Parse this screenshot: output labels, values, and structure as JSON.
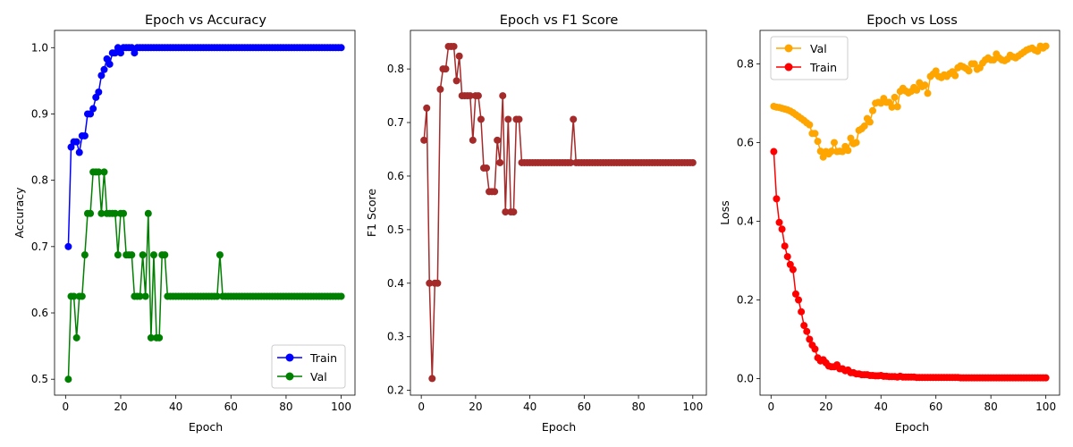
{
  "chart_data": [
    {
      "type": "line",
      "title": "Epoch vs Accuracy",
      "xlabel": "Epoch",
      "ylabel": "Accuracy",
      "xlim": [
        -4,
        105
      ],
      "ylim": [
        0.476,
        1.026
      ],
      "xticks": [
        0,
        20,
        40,
        60,
        80,
        100
      ],
      "yticks": [
        0.5,
        0.6,
        0.7,
        0.8,
        0.9,
        1.0
      ],
      "ytick_labels": [
        "0.5",
        "0.6",
        "0.7",
        "0.8",
        "0.9",
        "1.0"
      ],
      "legend": "lower-right",
      "series": [
        {
          "name": "Train",
          "color": "#0000ff",
          "values": [
            0.7,
            0.85,
            0.858,
            0.858,
            0.842,
            0.867,
            0.867,
            0.9,
            0.9,
            0.908,
            0.925,
            0.933,
            0.958,
            0.967,
            0.983,
            0.975,
            0.992,
            0.992,
            1.0,
            0.992,
            1.0,
            1.0,
            1.0,
            1.0,
            0.992,
            1.0,
            1.0,
            1.0,
            1.0,
            1.0,
            1.0,
            1.0,
            1.0,
            1.0,
            1.0,
            1.0,
            1.0,
            1.0,
            1.0,
            1.0,
            1.0,
            1.0,
            1.0,
            1.0,
            1.0,
            1.0,
            1.0,
            1.0,
            1.0,
            1.0,
            1.0,
            1.0,
            1.0,
            1.0,
            1.0,
            1.0,
            1.0,
            1.0,
            1.0,
            1.0,
            1.0,
            1.0,
            1.0,
            1.0,
            1.0,
            1.0,
            1.0,
            1.0,
            1.0,
            1.0,
            1.0,
            1.0,
            1.0,
            1.0,
            1.0,
            1.0,
            1.0,
            1.0,
            1.0,
            1.0,
            1.0,
            1.0,
            1.0,
            1.0,
            1.0,
            1.0,
            1.0,
            1.0,
            1.0,
            1.0,
            1.0,
            1.0,
            1.0,
            1.0,
            1.0,
            1.0,
            1.0,
            1.0,
            1.0,
            1.0
          ]
        },
        {
          "name": "Val",
          "color": "#008000",
          "values": [
            0.5,
            0.625,
            0.625,
            0.5625,
            0.625,
            0.625,
            0.6875,
            0.75,
            0.75,
            0.8125,
            0.8125,
            0.8125,
            0.75,
            0.8125,
            0.75,
            0.75,
            0.75,
            0.75,
            0.6875,
            0.75,
            0.75,
            0.6875,
            0.6875,
            0.6875,
            0.625,
            0.625,
            0.625,
            0.6875,
            0.625,
            0.75,
            0.5625,
            0.6875,
            0.5625,
            0.5625,
            0.6875,
            0.6875,
            0.625,
            0.625,
            0.625,
            0.625,
            0.625,
            0.625,
            0.625,
            0.625,
            0.625,
            0.625,
            0.625,
            0.625,
            0.625,
            0.625,
            0.625,
            0.625,
            0.625,
            0.625,
            0.625,
            0.6875,
            0.625,
            0.625,
            0.625,
            0.625,
            0.625,
            0.625,
            0.625,
            0.625,
            0.625,
            0.625,
            0.625,
            0.625,
            0.625,
            0.625,
            0.625,
            0.625,
            0.625,
            0.625,
            0.625,
            0.625,
            0.625,
            0.625,
            0.625,
            0.625,
            0.625,
            0.625,
            0.625,
            0.625,
            0.625,
            0.625,
            0.625,
            0.625,
            0.625,
            0.625,
            0.625,
            0.625,
            0.625,
            0.625,
            0.625,
            0.625,
            0.625,
            0.625,
            0.625,
            0.625
          ]
        }
      ]
    },
    {
      "type": "line",
      "title": "Epoch vs F1 Score",
      "xlabel": "Epoch",
      "ylabel": "F1 Score",
      "xlim": [
        -4,
        105
      ],
      "ylim": [
        0.191,
        0.872
      ],
      "xticks": [
        0,
        20,
        40,
        60,
        80,
        100
      ],
      "yticks": [
        0.2,
        0.3,
        0.4,
        0.5,
        0.6,
        0.7,
        0.8
      ],
      "ytick_labels": [
        "0.2",
        "0.3",
        "0.4",
        "0.5",
        "0.6",
        "0.7",
        "0.8"
      ],
      "legend": "none",
      "series": [
        {
          "color": "#a52a2a",
          "values": [
            0.667,
            0.727,
            0.4,
            0.222,
            0.4,
            0.4,
            0.762,
            0.8,
            0.8,
            0.842,
            0.842,
            0.842,
            0.778,
            0.824,
            0.75,
            0.75,
            0.75,
            0.75,
            0.667,
            0.75,
            0.75,
            0.706,
            0.615,
            0.615,
            0.571,
            0.571,
            0.571,
            0.667,
            0.625,
            0.75,
            0.533,
            0.706,
            0.533,
            0.533,
            0.706,
            0.706,
            0.625,
            0.625,
            0.625,
            0.625,
            0.625,
            0.625,
            0.625,
            0.625,
            0.625,
            0.625,
            0.625,
            0.625,
            0.625,
            0.625,
            0.625,
            0.625,
            0.625,
            0.625,
            0.625,
            0.706,
            0.625,
            0.625,
            0.625,
            0.625,
            0.625,
            0.625,
            0.625,
            0.625,
            0.625,
            0.625,
            0.625,
            0.625,
            0.625,
            0.625,
            0.625,
            0.625,
            0.625,
            0.625,
            0.625,
            0.625,
            0.625,
            0.625,
            0.625,
            0.625,
            0.625,
            0.625,
            0.625,
            0.625,
            0.625,
            0.625,
            0.625,
            0.625,
            0.625,
            0.625,
            0.625,
            0.625,
            0.625,
            0.625,
            0.625,
            0.625,
            0.625,
            0.625,
            0.625,
            0.625
          ]
        }
      ]
    },
    {
      "type": "line",
      "title": "Epoch vs Loss",
      "xlabel": "Epoch",
      "ylabel": "Loss",
      "xlim": [
        -4,
        105
      ],
      "ylim": [
        -0.042,
        0.885
      ],
      "xticks": [
        0,
        20,
        40,
        60,
        80,
        100
      ],
      "yticks": [
        0.0,
        0.2,
        0.4,
        0.6,
        0.8
      ],
      "ytick_labels": [
        "0.0",
        "0.2",
        "0.4",
        "0.6",
        "0.8"
      ],
      "legend": "top-left",
      "series": [
        {
          "name": "Val",
          "color": "#ffa500",
          "values": [
            0.692,
            0.69,
            0.689,
            0.687,
            0.685,
            0.683,
            0.68,
            0.676,
            0.671,
            0.666,
            0.661,
            0.656,
            0.65,
            0.645,
            0.623,
            0.623,
            0.603,
            0.578,
            0.563,
            0.577,
            0.571,
            0.578,
            0.6,
            0.577,
            0.578,
            0.577,
            0.59,
            0.58,
            0.611,
            0.597,
            0.6,
            0.631,
            0.635,
            0.642,
            0.661,
            0.652,
            0.681,
            0.7,
            0.702,
            0.7,
            0.712,
            0.702,
            0.702,
            0.69,
            0.715,
            0.691,
            0.73,
            0.738,
            0.731,
            0.726,
            0.73,
            0.74,
            0.733,
            0.752,
            0.742,
            0.746,
            0.725,
            0.768,
            0.774,
            0.782,
            0.768,
            0.765,
            0.772,
            0.768,
            0.775,
            0.78,
            0.77,
            0.79,
            0.795,
            0.792,
            0.788,
            0.782,
            0.8,
            0.8,
            0.786,
            0.79,
            0.802,
            0.81,
            0.815,
            0.81,
            0.81,
            0.825,
            0.815,
            0.81,
            0.808,
            0.812,
            0.822,
            0.818,
            0.815,
            0.82,
            0.825,
            0.83,
            0.835,
            0.838,
            0.84,
            0.835,
            0.832,
            0.845,
            0.84,
            0.845
          ]
        },
        {
          "name": "Train",
          "color": "#ff0000",
          "values": [
            0.577,
            0.457,
            0.397,
            0.38,
            0.337,
            0.31,
            0.29,
            0.277,
            0.215,
            0.2,
            0.17,
            0.135,
            0.12,
            0.1,
            0.085,
            0.075,
            0.053,
            0.045,
            0.048,
            0.04,
            0.032,
            0.03,
            0.03,
            0.035,
            0.025,
            0.025,
            0.02,
            0.022,
            0.015,
            0.015,
            0.012,
            0.012,
            0.01,
            0.01,
            0.01,
            0.008,
            0.008,
            0.007,
            0.007,
            0.008,
            0.006,
            0.006,
            0.005,
            0.005,
            0.005,
            0.004,
            0.006,
            0.004,
            0.004,
            0.004,
            0.004,
            0.004,
            0.003,
            0.003,
            0.003,
            0.003,
            0.003,
            0.003,
            0.003,
            0.003,
            0.003,
            0.003,
            0.003,
            0.003,
            0.003,
            0.003,
            0.003,
            0.003,
            0.002,
            0.002,
            0.002,
            0.002,
            0.002,
            0.002,
            0.002,
            0.002,
            0.002,
            0.002,
            0.002,
            0.002,
            0.002,
            0.002,
            0.002,
            0.002,
            0.002,
            0.002,
            0.002,
            0.002,
            0.002,
            0.002,
            0.002,
            0.002,
            0.002,
            0.002,
            0.002,
            0.002,
            0.002,
            0.002,
            0.002,
            0.002
          ]
        }
      ]
    }
  ]
}
